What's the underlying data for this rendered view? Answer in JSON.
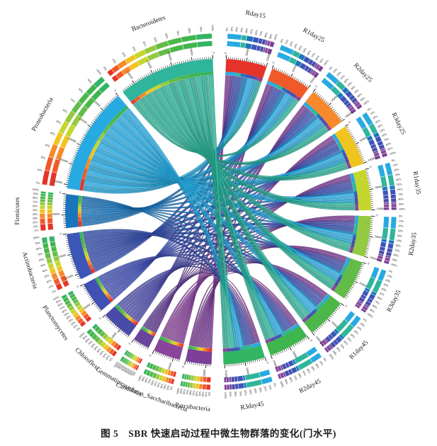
{
  "caption": "图 5　SBR 快速启动过程中微生物群落的变化(门水平)",
  "chart_data": {
    "type": "chord",
    "title": "SBR 快速启动过程中微生物群落的变化(门水平)",
    "figure_number": "图 5",
    "phyla": [
      {
        "name": "Parcubacteria",
        "color": "#7d3f98",
        "values": [
          9,
          8,
          7,
          7,
          6,
          6,
          5,
          5,
          5,
          5
        ]
      },
      {
        "name": "Candidatus_Saccharibacteria",
        "color": "#8a449c",
        "values": [
          6,
          6,
          6,
          7,
          7,
          7,
          7,
          7,
          7,
          6
        ]
      },
      {
        "name": "Gemmatimonadetes",
        "color": "#69449c",
        "values": [
          4,
          4,
          4,
          4,
          4,
          4,
          4,
          4,
          4,
          5
        ]
      },
      {
        "name": "Chloroflexi",
        "color": "#4a4aa8",
        "values": [
          7,
          7,
          7,
          8,
          8,
          8,
          8,
          8,
          8,
          7
        ]
      },
      {
        "name": "Planctomycetes",
        "color": "#4150b4",
        "values": [
          8,
          8,
          8,
          8,
          8,
          8,
          7,
          7,
          7,
          7
        ]
      },
      {
        "name": "Actinobacteria",
        "color": "#3c55b8",
        "values": [
          12,
          12,
          12,
          11,
          11,
          11,
          11,
          11,
          11,
          12
        ]
      },
      {
        "name": "Firmicutes",
        "color": "#1b75bc",
        "values": [
          14,
          12,
          10,
          9,
          8,
          7,
          6,
          6,
          5,
          5
        ]
      },
      {
        "name": "Proteobacteria",
        "color": "#27aae1",
        "values": [
          30,
          29,
          28,
          27,
          26,
          25,
          24,
          24,
          23,
          23
        ]
      },
      {
        "name": "Bacteroidetes",
        "color": "#2fb59b",
        "values": [
          11,
          15,
          19,
          21,
          23,
          25,
          27,
          29,
          31,
          33
        ]
      }
    ],
    "samples": [
      {
        "name": "Rday15",
        "color": "#e6332a"
      },
      {
        "name": "R1day25",
        "color": "#f05a28"
      },
      {
        "name": "R2day25",
        "color": "#f6892b"
      },
      {
        "name": "R3day25",
        "color": "#f0c41e"
      },
      {
        "name": "R1day35",
        "color": "#c5d62e"
      },
      {
        "name": "R2day35",
        "color": "#94ca41"
      },
      {
        "name": "R3day35",
        "color": "#63bc47"
      },
      {
        "name": "R1day45",
        "color": "#4cb748"
      },
      {
        "name": "R2day45",
        "color": "#3eb54d"
      },
      {
        "name": "R3day45",
        "color": "#32b562"
      }
    ],
    "unit_scale": 1000,
    "percent_ticks": [
      "0%",
      "10%",
      "20%",
      "30%",
      "40%",
      "50%",
      "60%",
      "70%",
      "80%",
      "90%",
      "100%"
    ],
    "value_tick_labeled_step": 50000,
    "value_tick_minor_step": 5000,
    "layout": {
      "gap_deg": 2.2,
      "samples_start_deg": 3,
      "samples_end_deg": 178,
      "phyla_start_deg": 182.5,
      "phyla_end_deg": 358,
      "sample_ring_phylum_order": [
        7,
        8,
        6,
        5,
        4,
        3,
        2,
        1,
        0
      ],
      "wide_strand_phyla": [
        "Proteobacteria",
        "Bacteroidetes"
      ]
    }
  }
}
